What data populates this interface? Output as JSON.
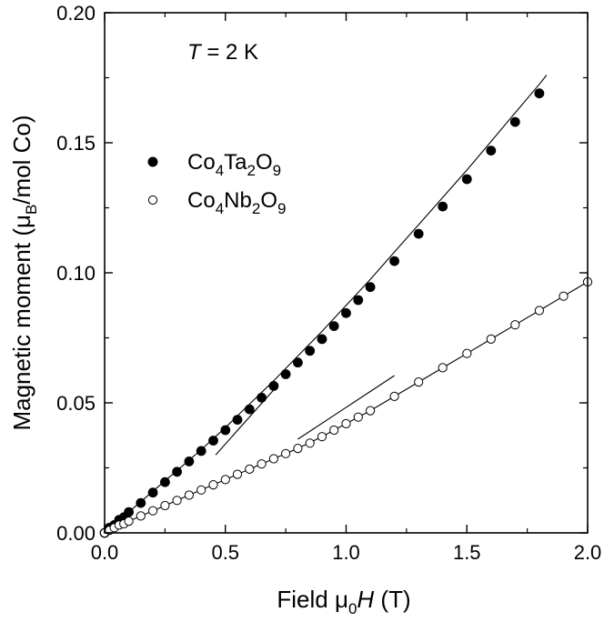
{
  "chart_data": {
    "type": "scatter",
    "xlabel": {
      "prefix": "Field ",
      "mu": "μ",
      "sub": "0",
      "var": "H",
      "suffix": " (T)"
    },
    "ylabel": {
      "prefix": "Magnetic moment (",
      "mu": "μ",
      "sub": "B",
      "suffix": "/mol Co)"
    },
    "xlim": [
      0,
      2.0
    ],
    "ylim": [
      0,
      0.2
    ],
    "xticks": [
      0.0,
      0.5,
      1.0,
      1.5,
      2.0
    ],
    "xtick_labels": [
      "0.0",
      "0.5",
      "1.0",
      "1.5",
      "2.0"
    ],
    "yticks": [
      0.0,
      0.05,
      0.1,
      0.15,
      0.2
    ],
    "ytick_labels": [
      "0.00",
      "0.05",
      "0.10",
      "0.15",
      "0.20"
    ],
    "annotation": {
      "var": "T",
      "text": " = 2 K"
    },
    "series": [
      {
        "name": "Co4Ta2O9",
        "legend": [
          {
            "t": "Co"
          },
          {
            "t": "4",
            "sub": true
          },
          {
            "t": "Ta"
          },
          {
            "t": "2",
            "sub": true
          },
          {
            "t": "O"
          },
          {
            "t": "9",
            "sub": true
          }
        ],
        "marker": "filled-circle",
        "x": [
          0.0,
          0.02,
          0.04,
          0.06,
          0.08,
          0.1,
          0.15,
          0.2,
          0.25,
          0.3,
          0.35,
          0.4,
          0.45,
          0.5,
          0.55,
          0.6,
          0.65,
          0.7,
          0.75,
          0.8,
          0.85,
          0.9,
          0.95,
          1.0,
          1.05,
          1.1,
          1.2,
          1.3,
          1.4,
          1.5,
          1.6,
          1.7,
          1.8
        ],
        "y": [
          0.0,
          0.002,
          0.003,
          0.005,
          0.006,
          0.008,
          0.0115,
          0.0155,
          0.0195,
          0.0235,
          0.0275,
          0.0315,
          0.0355,
          0.0395,
          0.0435,
          0.0475,
          0.052,
          0.0565,
          0.061,
          0.0655,
          0.07,
          0.0745,
          0.0795,
          0.0845,
          0.0895,
          0.0945,
          0.1045,
          0.115,
          0.1255,
          0.136,
          0.147,
          0.158,
          0.169
        ]
      },
      {
        "name": "Co4Nb2O9",
        "legend": [
          {
            "t": "Co"
          },
          {
            "t": "4",
            "sub": true
          },
          {
            "t": "Nb"
          },
          {
            "t": "2",
            "sub": true
          },
          {
            "t": "O"
          },
          {
            "t": "9",
            "sub": true
          }
        ],
        "marker": "open-circle",
        "x": [
          0.0,
          0.02,
          0.04,
          0.06,
          0.08,
          0.1,
          0.15,
          0.2,
          0.25,
          0.3,
          0.35,
          0.4,
          0.45,
          0.5,
          0.55,
          0.6,
          0.65,
          0.7,
          0.75,
          0.8,
          0.85,
          0.9,
          0.95,
          1.0,
          1.05,
          1.1,
          1.2,
          1.3,
          1.4,
          1.5,
          1.6,
          1.7,
          1.8,
          1.9,
          2.0
        ],
        "y": [
          0.0,
          0.001,
          0.002,
          0.003,
          0.0035,
          0.0045,
          0.0065,
          0.0085,
          0.0105,
          0.0125,
          0.0145,
          0.0165,
          0.0185,
          0.0205,
          0.0225,
          0.0245,
          0.0265,
          0.0285,
          0.0305,
          0.0325,
          0.0345,
          0.037,
          0.0395,
          0.042,
          0.0445,
          0.047,
          0.0525,
          0.058,
          0.0635,
          0.069,
          0.0745,
          0.08,
          0.0855,
          0.091,
          0.0965
        ]
      }
    ],
    "fit_lines": [
      {
        "name": "Ta fit",
        "x": [
          0.0,
          0.1,
          0.2,
          0.3,
          0.4,
          0.5,
          0.6,
          0.7,
          0.8,
          0.9,
          1.0,
          1.1,
          1.2,
          1.3,
          1.4,
          1.5,
          1.6,
          1.7,
          1.8,
          1.83
        ],
        "y": [
          0.0,
          0.008,
          0.016,
          0.024,
          0.032,
          0.0405,
          0.0495,
          0.0585,
          0.068,
          0.0775,
          0.0875,
          0.0975,
          0.108,
          0.1185,
          0.129,
          0.1395,
          0.1505,
          0.1615,
          0.1725,
          0.176
        ]
      },
      {
        "name": "Nb fit",
        "x": [
          0.0,
          0.1,
          0.2,
          0.3,
          0.4,
          0.5,
          0.6,
          0.7,
          0.8,
          0.9,
          1.0,
          1.1,
          1.2,
          1.3,
          1.4,
          1.5,
          1.6,
          1.7,
          1.8,
          1.9,
          2.0
        ],
        "y": [
          0.0,
          0.0045,
          0.0085,
          0.0125,
          0.0165,
          0.0205,
          0.0245,
          0.0285,
          0.0325,
          0.037,
          0.042,
          0.047,
          0.0525,
          0.058,
          0.0635,
          0.069,
          0.0745,
          0.08,
          0.0855,
          0.091,
          0.0965
        ]
      },
      {
        "name": "Ta tangent",
        "x": [
          0.46,
          0.7
        ],
        "y": [
          0.03,
          0.055
        ]
      },
      {
        "name": "Nb tangent",
        "x": [
          0.8,
          1.2
        ],
        "y": [
          0.036,
          0.0605
        ]
      }
    ]
  }
}
